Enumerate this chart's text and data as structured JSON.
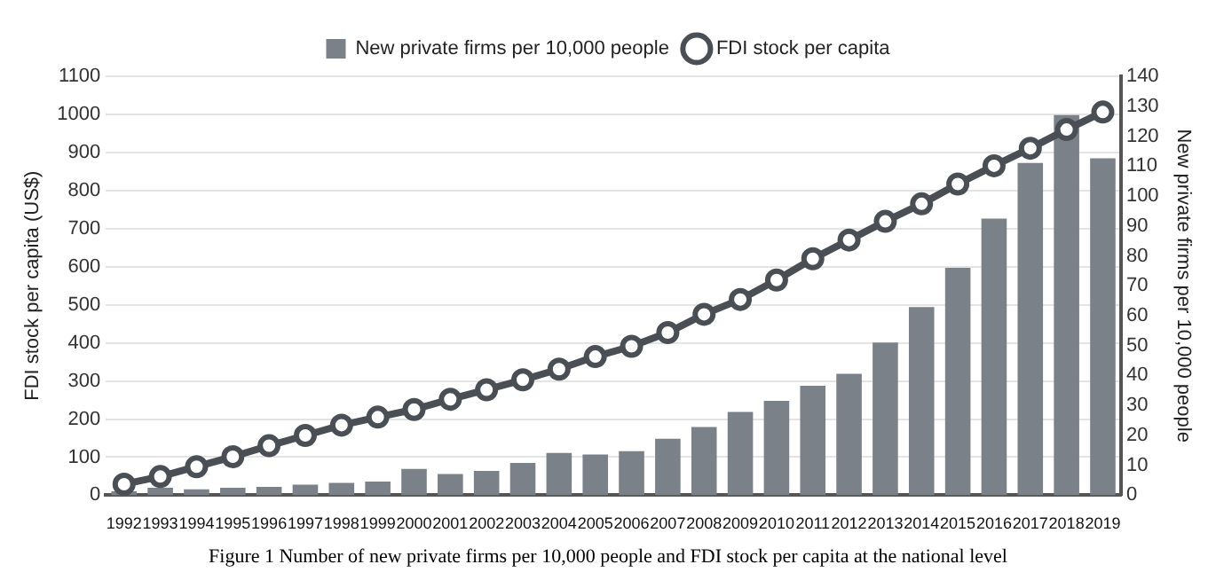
{
  "chart_data": {
    "type": "bar",
    "categories": [
      "1992",
      "1993",
      "1994",
      "1995",
      "1996",
      "1997",
      "1998",
      "1999",
      "2000",
      "2001",
      "2002",
      "2003",
      "2004",
      "2005",
      "2006",
      "2007",
      "2008",
      "2009",
      "2010",
      "2011",
      "2012",
      "2013",
      "2014",
      "2015",
      "2016",
      "2017",
      "2018",
      "2019"
    ],
    "series": [
      {
        "name": "New private firms per 10,000 people",
        "axis": "y2",
        "color": "#7b8189",
        "values": [
          1.3,
          2.5,
          2,
          2.5,
          2.8,
          3.5,
          4.1,
          4.6,
          8.8,
          7.1,
          8.1,
          10.8,
          14.1,
          13.6,
          14.7,
          18.9,
          22.8,
          27.8,
          31.5,
          36.6,
          40.6,
          51,
          62.9,
          76,
          92.4,
          111,
          127,
          112.6
        ]
      },
      {
        "name": "FDI stock per capita",
        "type": "line",
        "color": "#4a4f55",
        "values": [
          29,
          49,
          75,
          101,
          130,
          157,
          184,
          205,
          225,
          252,
          277,
          303,
          331,
          364,
          391,
          427,
          475,
          514,
          565,
          621,
          670,
          719,
          765,
          817,
          865,
          911,
          960,
          1006
        ]
      }
    ],
    "ylabel": "FDI stock per capita (US$)",
    "y2label": "New private firms per 10,000 people",
    "ylim": [
      0,
      1100
    ],
    "yticks": [
      0,
      100,
      200,
      300,
      400,
      500,
      600,
      700,
      800,
      900,
      1000,
      1100
    ],
    "y2lim": [
      0,
      140
    ],
    "y2ticks": [
      0,
      10,
      20,
      30,
      40,
      50,
      60,
      70,
      80,
      90,
      100,
      110,
      120,
      130,
      140
    ],
    "grid": "y",
    "legend": "top",
    "marker": "circle",
    "line_style": "solid",
    "annotations": [
      "Figure 1 Number of new private firms per 10,000 people and FDI stock per capita at the national level"
    ]
  }
}
